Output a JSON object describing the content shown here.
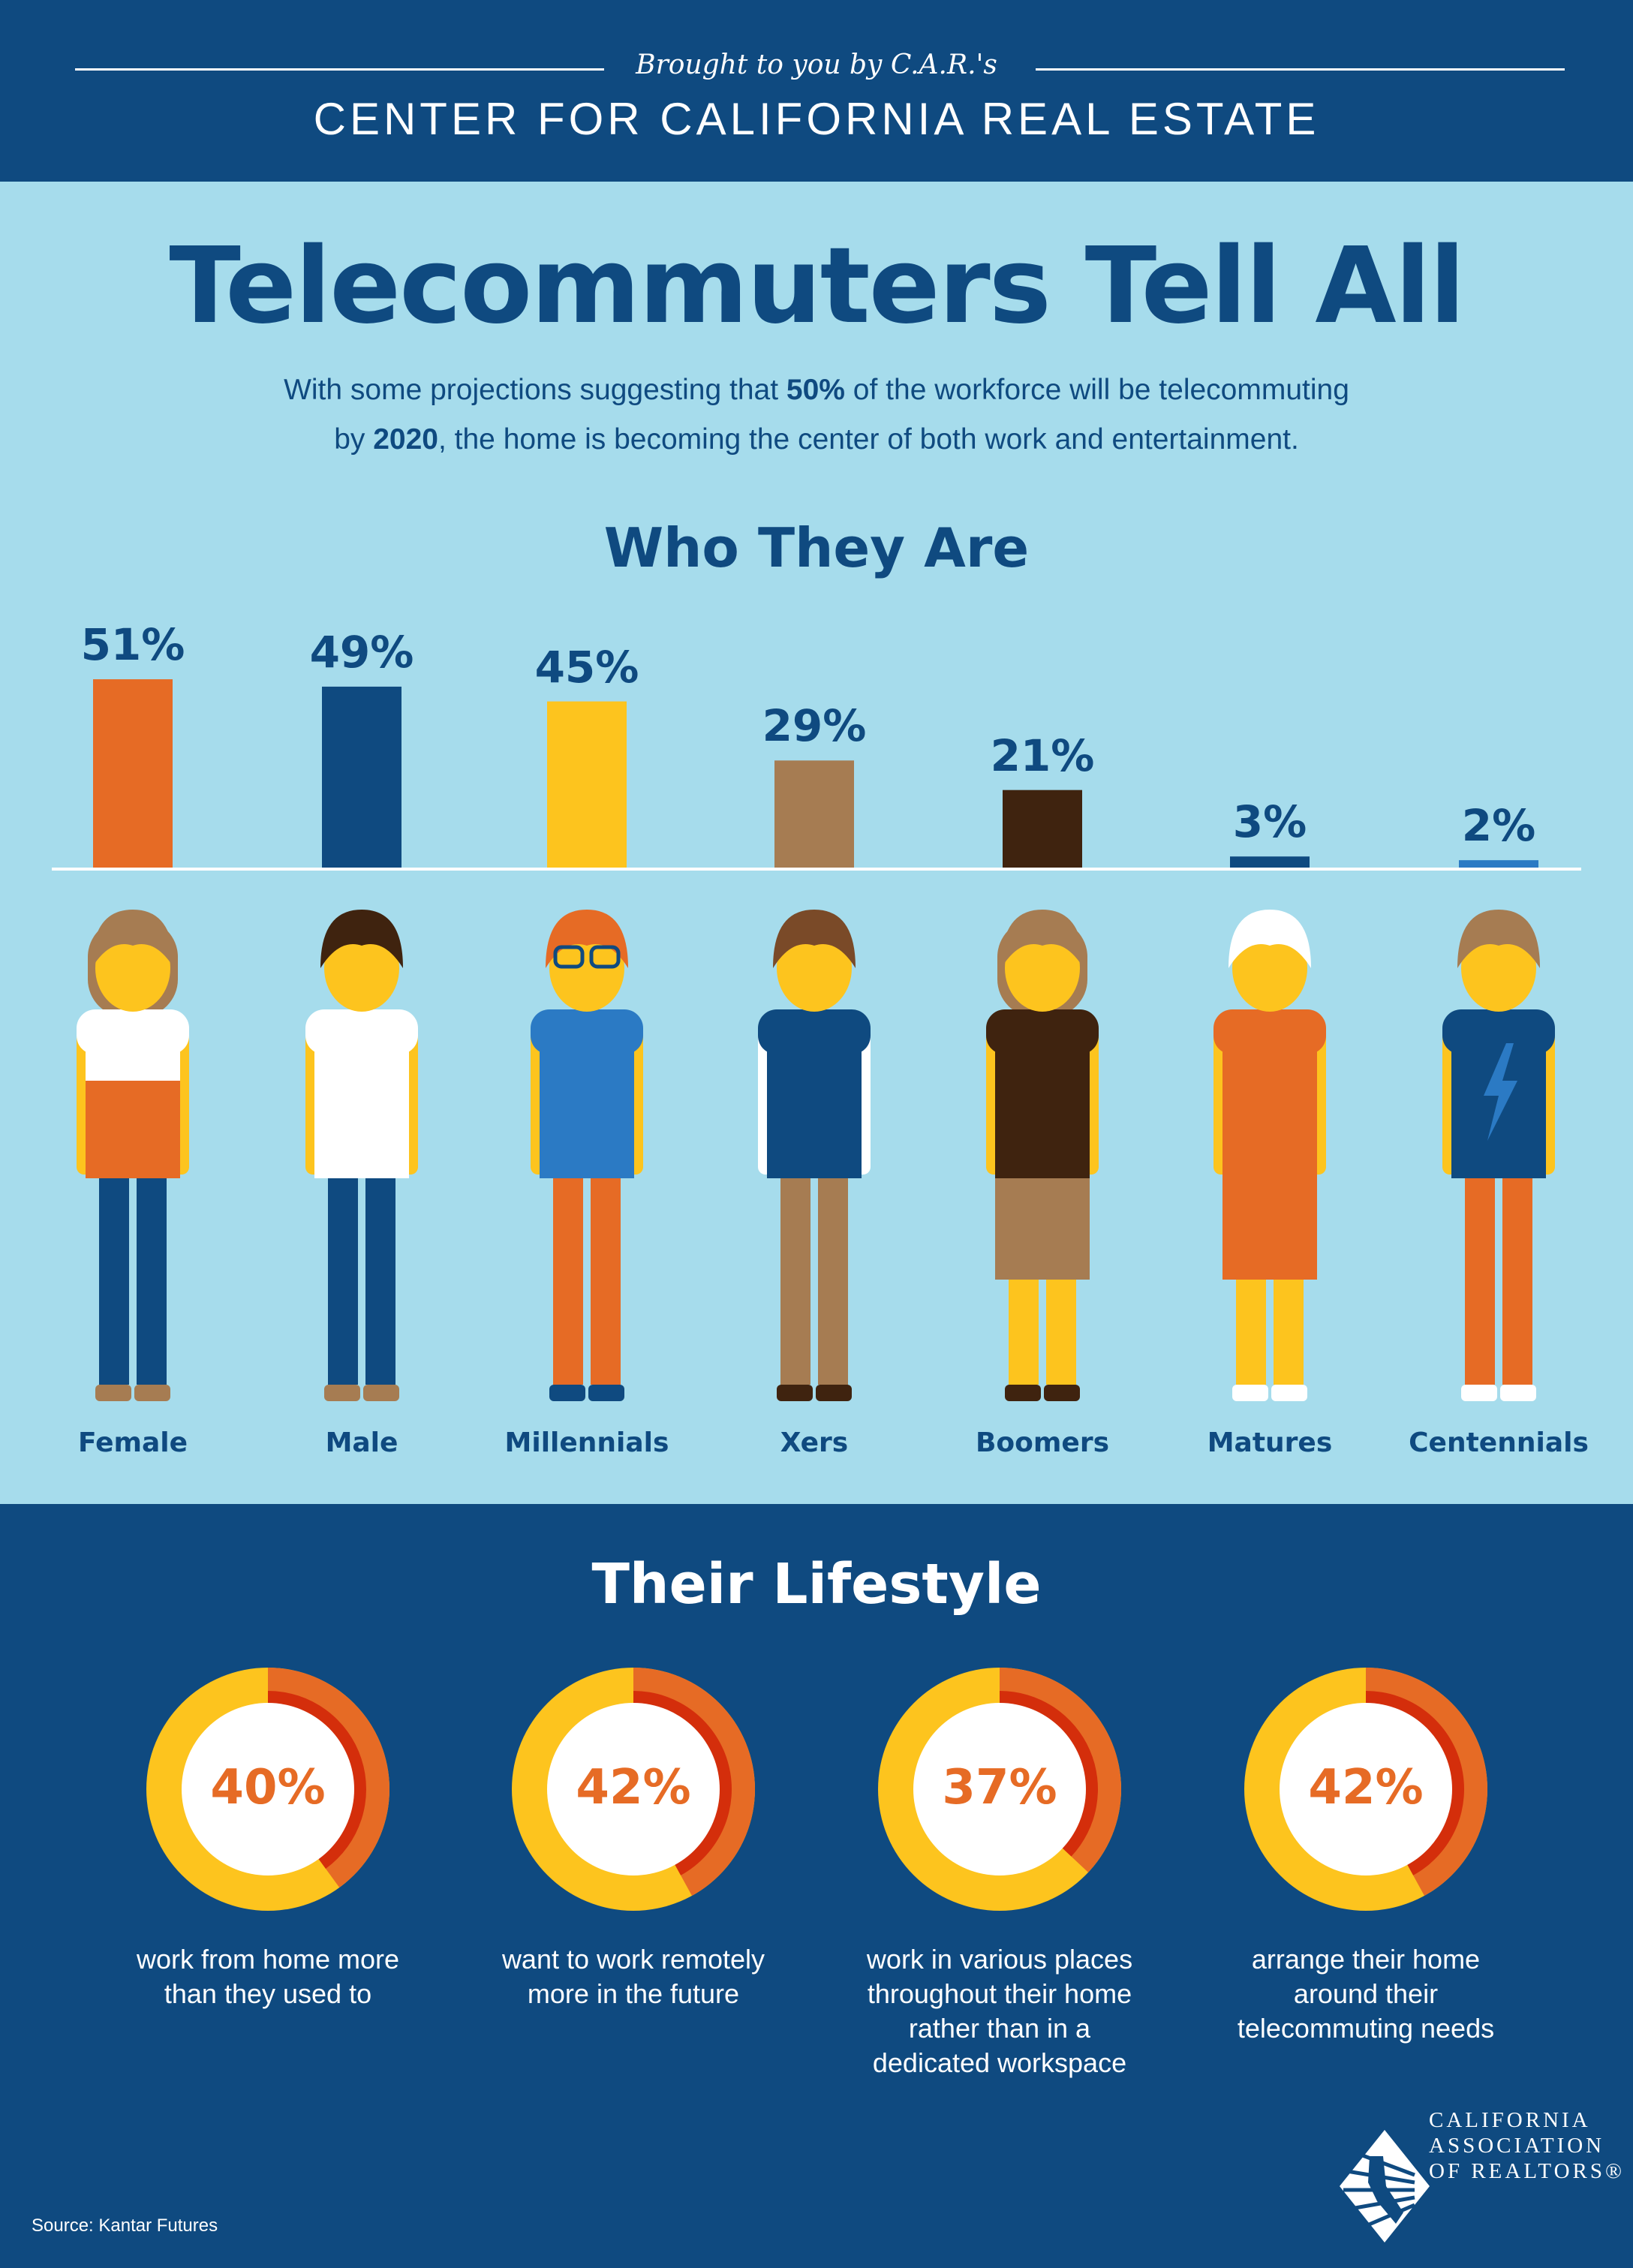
{
  "header": {
    "brought": "Brought to you by C.A.R.'s",
    "center": "CENTER FOR CALIFORNIA REAL ESTATE"
  },
  "title": "Telecommuters Tell All",
  "subtitle": {
    "l1a": "With some projections suggesting that ",
    "l1b": "50%",
    "l1c": " of the workforce will be telecommuting",
    "l2a": "by ",
    "l2b": "2020",
    "l2c": ", the home is becoming the center of both work and entertainment."
  },
  "who": {
    "heading": "Who They Are"
  },
  "chart_data": [
    {
      "type": "bar",
      "title": "Who They Are",
      "categories": [
        "Female",
        "Male",
        "Millennials",
        "Xers",
        "Boomers",
        "Matures",
        "Centennials"
      ],
      "values": [
        51,
        49,
        45,
        29,
        21,
        3,
        2
      ],
      "labels": [
        "51%",
        "49%",
        "45%",
        "29%",
        "21%",
        "3%",
        "2%"
      ],
      "colors": [
        "#e66b25",
        "#0f4a80",
        "#fdc41e",
        "#a67c52",
        "#3f230f",
        "#0f4a80",
        "#2b7ac4"
      ]
    },
    {
      "type": "pie",
      "title": "Their Lifestyle",
      "values": [
        40,
        42,
        37,
        42
      ],
      "labels": [
        "40%",
        "42%",
        "37%",
        "42%"
      ],
      "descriptions": [
        [
          "work from home more",
          "than they used to"
        ],
        [
          "want to work remotely",
          "more in the future"
        ],
        [
          "work in various places",
          "throughout their home",
          "rather than in a",
          "dedicated workspace"
        ],
        [
          "arrange their home",
          "around their",
          "telecommuting needs"
        ]
      ],
      "colors": {
        "value": "#e66b25",
        "inner": "#d42e0b",
        "rest": "#fdc41e",
        "center": "#ffffff"
      }
    }
  ],
  "figures": [
    {
      "hair": "#a67c52",
      "shirt": "#e66b25",
      "top": "#ffffff",
      "pants": "#0f4a80",
      "shoes": "#a67c52",
      "long": true
    },
    {
      "hair": "#3f230f",
      "shirt": "#ffffff",
      "top": "#ffffff",
      "pants": "#0f4a80",
      "shoes": "#a67c52"
    },
    {
      "hair": "#e66b25",
      "shirt": "#2b7ac4",
      "top": "#2b7ac4",
      "pants": "#e66b25",
      "shoes": "#0f4a80",
      "glasses": true
    },
    {
      "hair": "#7a4a28",
      "shirt": "#0f4a80",
      "top": "#0f4a80",
      "pants": "#a67c52",
      "shoes": "#3f230f",
      "sleeves": "#ffffff"
    },
    {
      "hair": "#a67c52",
      "shirt": "#a67c52",
      "top": "#3f230f",
      "pants": "#fdc41e",
      "shoes": "#3f230f",
      "skirt": true,
      "long": true
    },
    {
      "hair": "#ffffff",
      "shirt": "#e66b25",
      "top": "#e66b25",
      "pants": "#fdc41e",
      "shoes": "#ffffff",
      "skirt": true
    },
    {
      "hair": "#a67c52",
      "shirt": "#0f4a80",
      "top": "#0f4a80",
      "pants": "#e66b25",
      "shoes": "#ffffff",
      "bolt": true
    }
  ],
  "lifestyle": {
    "heading": "Their Lifestyle"
  },
  "source": "Source: Kantar Futures",
  "logo": {
    "l1": "CALIFORNIA",
    "l2": "ASSOCIATION",
    "l3": "OF REALTORS®"
  }
}
